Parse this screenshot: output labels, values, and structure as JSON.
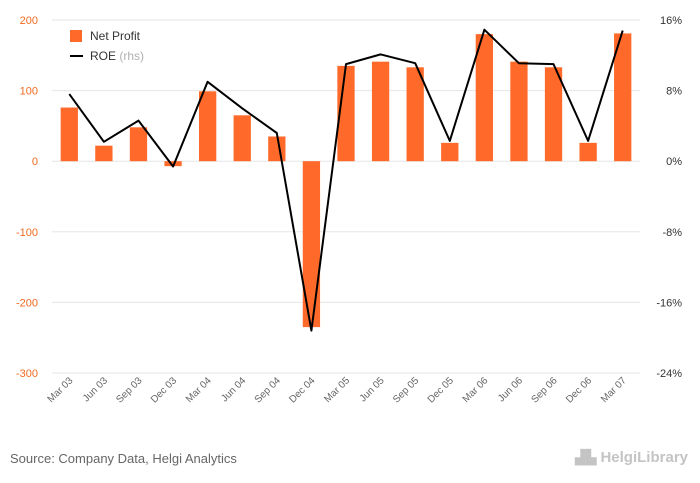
{
  "chart_data": {
    "type": "bar",
    "categories": [
      "Mar 03",
      "Jun 03",
      "Sep 03",
      "Dec 03",
      "Mar 04",
      "Jun 04",
      "Sep 04",
      "Dec 04",
      "Mar 05",
      "Jun 05",
      "Sep 05",
      "Dec 05",
      "Mar 06",
      "Jun 06",
      "Sep 06",
      "Dec 06",
      "Mar 07"
    ],
    "series": [
      {
        "name": "Net Profit",
        "axis": "left",
        "kind": "bar",
        "color": "#ff6a2b",
        "values": [
          76,
          22,
          48,
          -7,
          99,
          65,
          35,
          -235,
          135,
          141,
          133,
          26,
          180,
          141,
          133,
          26,
          181
        ]
      },
      {
        "name": "ROE",
        "axis": "right",
        "kind": "line",
        "color": "#000000",
        "values": [
          7.6,
          2.2,
          4.6,
          -0.6,
          9.0,
          6.0,
          3.2,
          -19.2,
          11.0,
          12.1,
          11.1,
          2.3,
          14.9,
          11.1,
          11.0,
          2.3,
          14.8
        ]
      }
    ],
    "left_axis": {
      "min": -300,
      "max": 200,
      "ticks": [
        200,
        100,
        0,
        -100,
        -200,
        -300
      ],
      "tick_labels": [
        "200",
        "100",
        "0",
        "-100",
        "-200",
        "-300"
      ],
      "color": "#f26a21"
    },
    "right_axis": {
      "min": -24,
      "max": 16,
      "ticks": [
        16,
        8,
        0,
        -8,
        -16,
        -24
      ],
      "tick_labels": [
        "16%",
        "8%",
        "0%",
        "-8%",
        "-16%",
        "-24%"
      ]
    },
    "legend": {
      "placement": "top-left",
      "items": [
        {
          "label": "Net Profit",
          "note": "",
          "swatch": "bar",
          "color": "#ff6a2b"
        },
        {
          "label": "ROE",
          "note": "(rhs)",
          "swatch": "line",
          "color": "#000000"
        }
      ]
    },
    "grid": true
  },
  "footer": {
    "source": "Source: Company Data, Helgi Analytics"
  },
  "logo": {
    "text": "HelgiLibrary",
    "icon": "city-skyline-icon"
  }
}
